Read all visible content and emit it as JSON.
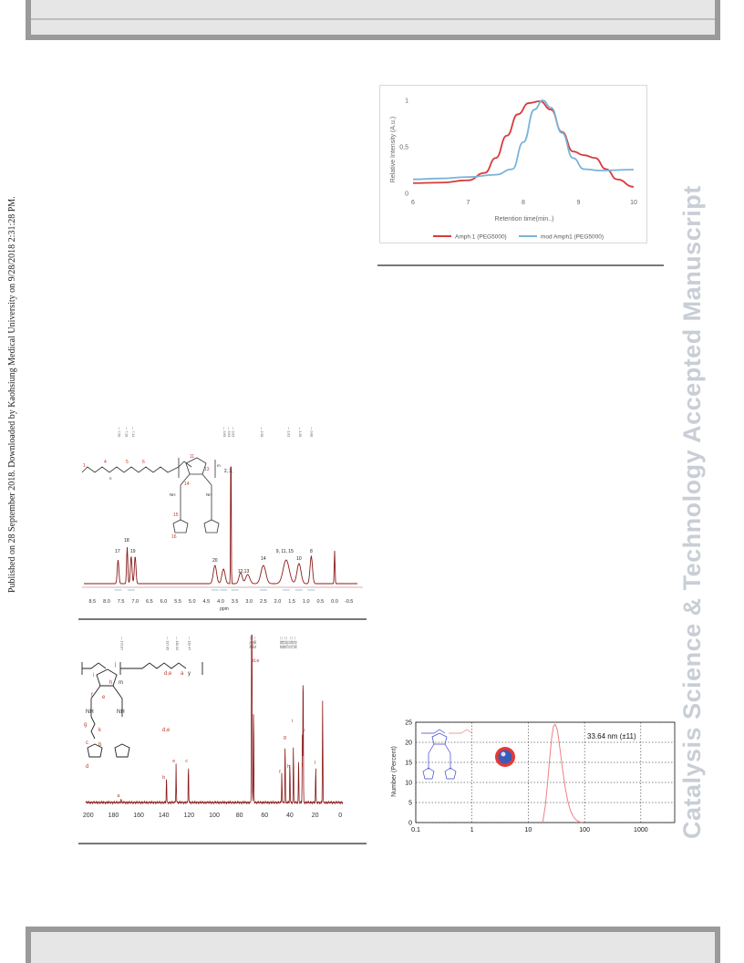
{
  "side_note": "Published on 28 September 2018. Downloaded by Kaohsiung Medical University on 9/28/2018 2:31:28 PM.",
  "watermark": "Catalysis Science & Technology Accepted Manuscript",
  "colors": {
    "red": "#d93a3a",
    "blue": "#7ab3d9",
    "nmr": "#8b1a1a",
    "label": "#c0392b",
    "dls": "#f08080",
    "structure_blue": "#3a45c8"
  },
  "chart_data": [
    {
      "type": "line",
      "ylabel": "Relative Intensity (A.u.)",
      "xlabel": "Retention time(min..)",
      "xlim": [
        6,
        10
      ],
      "ylim": [
        0,
        1
      ],
      "x_ticks": [
        "6",
        "7",
        "8",
        "9",
        "10"
      ],
      "y_ticks": [
        "0",
        "0,5",
        "1"
      ],
      "grid": false,
      "legend": "bottom",
      "series": [
        {
          "name": "Amph 1 (PEG5000)",
          "color": "#d93a3a",
          "x": [
            6,
            6.5,
            7,
            7.3,
            7.5,
            7.7,
            7.9,
            8.1,
            8.3,
            8.5,
            8.7,
            8.9,
            9.1,
            9.3,
            9.5,
            9.7,
            10
          ],
          "y": [
            0.11,
            0.115,
            0.14,
            0.22,
            0.38,
            0.62,
            0.85,
            0.97,
            0.99,
            0.9,
            0.66,
            0.45,
            0.41,
            0.38,
            0.26,
            0.15,
            0.07
          ]
        },
        {
          "name": "mod Amph1 (PEG5000)",
          "color": "#7ab3d9",
          "x": [
            6,
            6.5,
            7,
            7.5,
            7.8,
            8.0,
            8.2,
            8.35,
            8.5,
            8.7,
            8.9,
            9.1,
            9.4,
            10
          ],
          "y": [
            0.15,
            0.16,
            0.175,
            0.2,
            0.26,
            0.55,
            0.9,
            1.0,
            0.92,
            0.65,
            0.38,
            0.26,
            0.245,
            0.255
          ]
        }
      ]
    },
    {
      "type": "line",
      "xlabel": "ppm",
      "x_ticks": [
        "8.5",
        "8.0",
        "7.5",
        "7.0",
        "6.5",
        "6.0",
        "5.5",
        "5.0",
        "4.5",
        "4.0",
        "3.5",
        "3.0",
        "2.5",
        "2.0",
        "1.5",
        "1.0",
        "0.5",
        "0.0",
        "-0.5"
      ],
      "peak_labels": [
        "17",
        "18",
        "19",
        "20",
        "2, 3,",
        "12,13",
        "14",
        "9, 11, 15",
        "10",
        "8",
        "1",
        "4",
        "5",
        "6",
        "7",
        "16"
      ],
      "top_labels": [
        "7.50",
        "7.28",
        "7.14",
        "3.65",
        "3.64",
        "3.63",
        "2.58",
        "1.62",
        "1.26",
        "0.88"
      ]
    },
    {
      "type": "line",
      "x_ticks": [
        "200",
        "180",
        "160",
        "140",
        "120",
        "100",
        "80",
        "60",
        "40",
        "20",
        "0"
      ],
      "peak_labels": [
        "a",
        "b",
        "c",
        "d,e",
        "e",
        "f",
        "g",
        "h",
        "i",
        "j",
        "k",
        "l"
      ],
      "top_labels": [
        "173.87",
        "137.85",
        "130.32",
        "120.47",
        "70.40",
        "70.06",
        "68.79",
        "46.40",
        "43.79",
        "37.15",
        "33.07",
        "30.12",
        "29.47",
        "19.50"
      ]
    },
    {
      "type": "line",
      "ylabel": "Number (Percent)",
      "xscale": "log",
      "xlim": [
        0.1,
        4000
      ],
      "ylim": [
        0,
        25
      ],
      "x_ticks": [
        "0.1",
        "1",
        "10",
        "100",
        "1000"
      ],
      "y_ticks": [
        "0",
        "5",
        "10",
        "15",
        "20",
        "25"
      ],
      "grid": true,
      "annotation": "33.64 nm (±11)",
      "series": [
        {
          "color": "#f08080",
          "x": [
            18,
            20,
            22,
            24,
            26,
            28,
            30,
            33,
            36,
            40,
            45,
            50,
            56,
            63,
            70,
            80,
            90
          ],
          "y": [
            0,
            4,
            10,
            16,
            21,
            24,
            24.5,
            23,
            19,
            14,
            9,
            5.5,
            3,
            1.5,
            0.7,
            0.2,
            0
          ]
        }
      ]
    }
  ]
}
